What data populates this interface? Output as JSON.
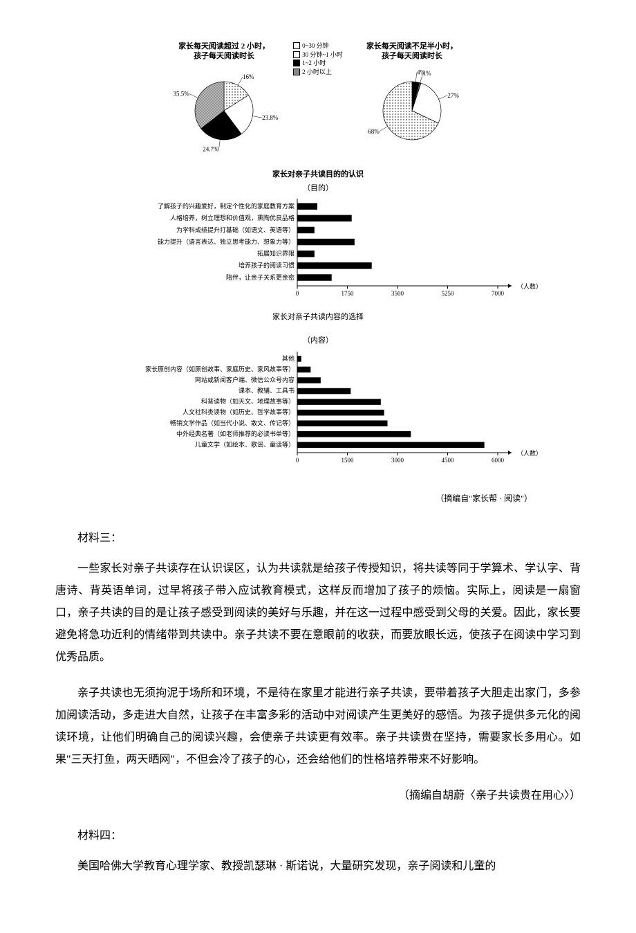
{
  "pies": {
    "left": {
      "title": "家长每天阅读超过 2 小时，\n孩子每天阅读时长",
      "slices": [
        {
          "label": "16%",
          "value": 16,
          "fill": "#ffffff",
          "pattern": "dots"
        },
        {
          "label": "23.8%",
          "value": 23.8,
          "fill": "#ffffff"
        },
        {
          "label": "24.7%",
          "value": 24.7,
          "fill": "#000000"
        },
        {
          "label": "35.5%",
          "value": 35.5,
          "fill": "#888888",
          "pattern": "cross"
        }
      ]
    },
    "right": {
      "title": "家长每天阅读不足半小时，\n孩子每天阅读时长",
      "slices": [
        {
          "label": "4%",
          "value": 4,
          "fill": "#000000"
        },
        {
          "label": "1%",
          "value": 1,
          "fill": "#555555"
        },
        {
          "label": "27%",
          "value": 27,
          "fill": "#ffffff"
        },
        {
          "label": "68%",
          "value": 68,
          "fill": "#cccccc",
          "pattern": "dots"
        }
      ]
    },
    "legend": [
      {
        "label": "0~30 分钟",
        "fill": "#ffffff"
      },
      {
        "label": "30 分钟~1 小时",
        "fill": "#ffffff"
      },
      {
        "label": "1~2 小时",
        "fill": "#000000"
      },
      {
        "label": "2 小时以上",
        "fill": "#888888"
      }
    ]
  },
  "bar1": {
    "title": "家长对亲子共读目的的认识",
    "subtitle": "（目的）",
    "xlabel": "（人数）",
    "xticks": [
      0,
      1750,
      3500,
      5250,
      7000
    ],
    "xmax": 7000,
    "rows": [
      {
        "label": "了解孩子的兴趣爱好，制定个性化的家庭教育方案",
        "value": 700
      },
      {
        "label": "人格培养，树立理想和价值观，熏陶优良品格",
        "value": 1900
      },
      {
        "label": "为学科成绩提升打基础（如语文、英语等）",
        "value": 600
      },
      {
        "label": "能力提升（语言表达、独立思考能力、想象力等）",
        "value": 2000
      },
      {
        "label": "拓展知识界限",
        "value": 600
      },
      {
        "label": "培养孩子的阅读习惯",
        "value": 2600
      },
      {
        "label": "陪伴，让亲子关系更亲密",
        "value": 1200
      }
    ],
    "caption": "家长对亲子共读内容的选择"
  },
  "bar2": {
    "title": "（内容）",
    "xlabel": "（人数）",
    "xticks": [
      0,
      1500,
      3000,
      4500,
      6000
    ],
    "xmax": 6000,
    "rows": [
      {
        "label": "其他",
        "value": 120
      },
      {
        "label": "家长原创内容（如原创故事、家庭历史、家风故事等）",
        "value": 400
      },
      {
        "label": "网站或新闻客户端、微信公众号内容",
        "value": 700
      },
      {
        "label": "课本、教辅、工具书",
        "value": 1600
      },
      {
        "label": "科普读物（如天文、地理故事等）",
        "value": 2500
      },
      {
        "label": "人文社科类读物（如历史、哲学故事等）",
        "value": 2600
      },
      {
        "label": "畅销文学作品（如当代小说、散文、传记等）",
        "value": 2700
      },
      {
        "label": "中外经典名著（如老师推荐的必读书单等）",
        "value": 3400
      },
      {
        "label": "儿童文学（如绘本、歌谣、童话等）",
        "value": 5600
      }
    ]
  },
  "chart_source": "（摘编自\"家长帮 · 阅读\"）",
  "material3": {
    "label": "材料三：",
    "p1": "一些家长对亲子共读存在认识误区，认为共读就是给孩子传授知识，将共读等同于学算术、学认字、背唐诗、背英语单词，过早将孩子带入应试教育模式，这样反而增加了孩子的烦恼。实际上，阅读是一扇窗口，亲子共读的目的是让孩子感受到阅读的美好与乐趣，并在这一过程中感受到父母的关爱。因此，家长要避免将急功近利的情绪带到共读中。亲子共读不要在意眼前的收获，而要放眼长远，使孩子在阅读中学习到优秀品质。",
    "p2": "亲子共读也无须拘泥于场所和环境，不是待在家里才能进行亲子共读，要带着孩子大胆走出家门，多参加阅读活动，多走进大自然，让孩子在丰富多彩的活动中对阅读产生更美好的感悟。为孩子提供多元化的阅读环境，让他们明确自己的阅读兴趣，会使亲子共读更有效率。亲子共读贵在坚持，需要家长多用心。如果\"三天打鱼，两天晒网\"，不但会冷了孩子的心，还会给他们的性格培养带来不好影响。",
    "cite": "（摘编自胡蔚〈亲子共读贵在用心〉）"
  },
  "material4": {
    "label": "材料四：",
    "p1": "美国哈佛大学教育心理学家、教授凯瑟琳 · 斯诺说，大量研究发现，亲子阅读和儿童的"
  },
  "colors": {
    "bar_fill": "#000000",
    "axis": "#000000",
    "grid": "#000000"
  }
}
